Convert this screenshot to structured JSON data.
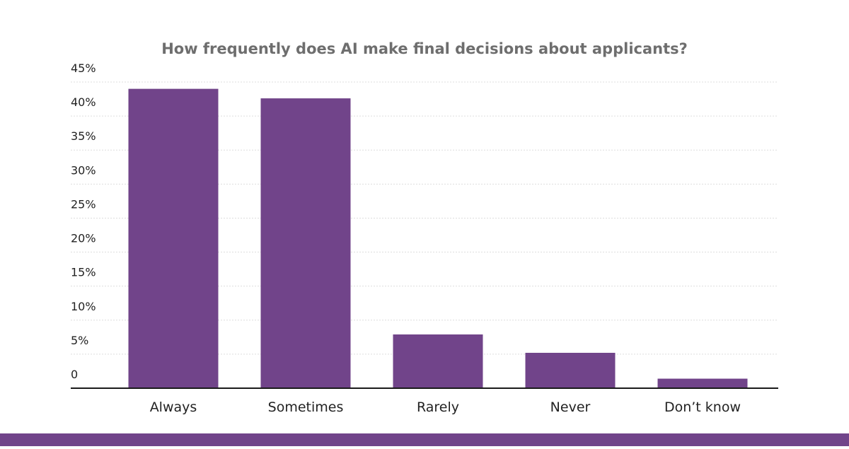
{
  "chart_data": {
    "type": "bar",
    "title": "How frequently does AI make final decisions about applicants?",
    "categories": [
      "Always",
      "Sometimes",
      "Rarely",
      "Never",
      "Don’t know"
    ],
    "values": [
      44,
      42.6,
      7.9,
      5.2,
      1.4
    ],
    "ylim": [
      0,
      45
    ],
    "yticks": [
      0,
      5,
      10,
      15,
      20,
      25,
      30,
      35,
      40,
      45
    ],
    "ytick_labels": [
      "0",
      "5%",
      "10%",
      "15%",
      "20%",
      "25%",
      "30%",
      "35%",
      "40%",
      "45%"
    ],
    "xlabel": "",
    "ylabel": "",
    "grid": true,
    "legend": "none"
  },
  "colors": {
    "bar": "#71448a",
    "footer_band": "#71448a",
    "title": "#6e6e6e",
    "axis": "#1a1a1a",
    "grid": "#dddddd"
  }
}
